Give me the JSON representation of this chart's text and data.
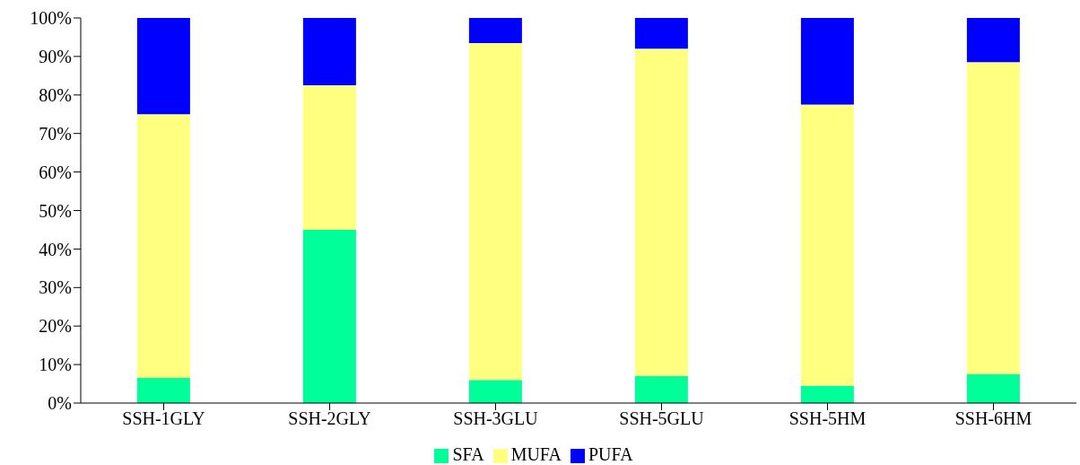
{
  "chart_data": {
    "type": "bar",
    "stacked": true,
    "categories": [
      "SSH-1GLY",
      "SSH-2GLY",
      "SSH-3GLU",
      "SSH-5GLU",
      "SSH-5HM",
      "SSH-6HM"
    ],
    "series": [
      {
        "name": "SFA",
        "color": "#00ff99",
        "values": [
          6.5,
          45,
          6,
          7,
          4.5,
          7.5
        ]
      },
      {
        "name": "MUFA",
        "color": "#ffff80",
        "values": [
          68.5,
          37.5,
          87.5,
          85,
          73,
          81
        ]
      },
      {
        "name": "PUFA",
        "color": "#0000ff",
        "values": [
          25,
          17.5,
          6.5,
          8,
          22.5,
          11.5
        ]
      }
    ],
    "ylim": [
      0,
      100
    ],
    "yticks": [
      {
        "value": 0,
        "label": "0%"
      },
      {
        "value": 10,
        "label": "10%"
      },
      {
        "value": 20,
        "label": "20%"
      },
      {
        "value": 30,
        "label": "30%"
      },
      {
        "value": 40,
        "label": "40%"
      },
      {
        "value": 50,
        "label": "50%"
      },
      {
        "value": 60,
        "label": "60%"
      },
      {
        "value": 70,
        "label": "70%"
      },
      {
        "value": 80,
        "label": "80%"
      },
      {
        "value": 90,
        "label": "90%"
      },
      {
        "value": 100,
        "label": "100%"
      }
    ],
    "grid": false,
    "legend": "bottom"
  }
}
